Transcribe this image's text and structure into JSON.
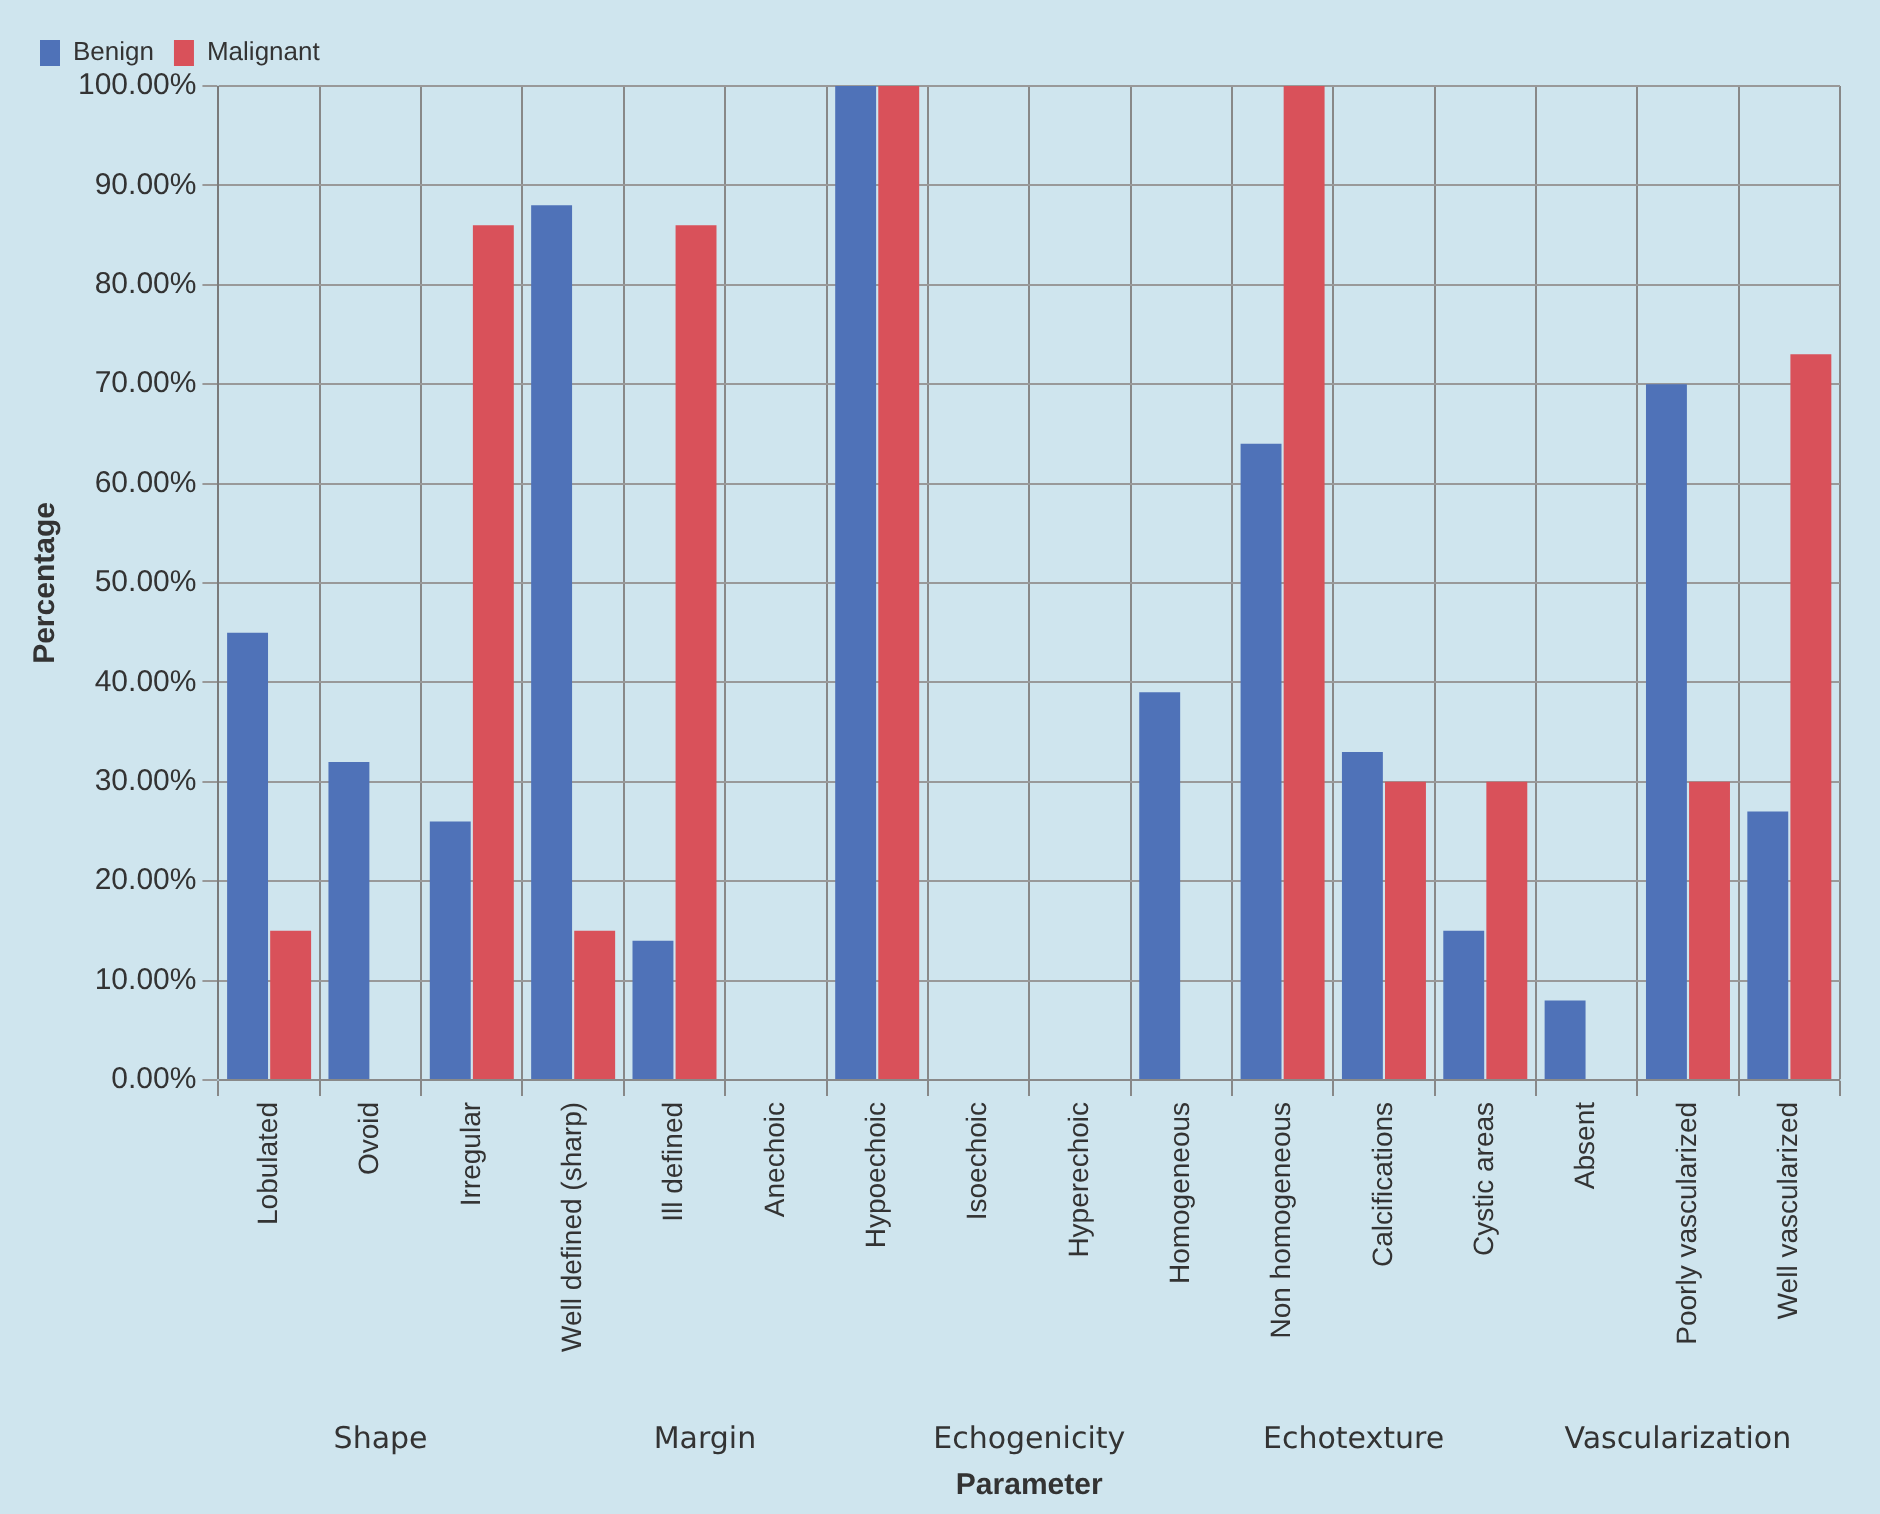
{
  "chart_data": {
    "type": "bar",
    "xlabel": "Parameter",
    "ylabel": "Percentage",
    "categories": [
      "Lobulated",
      "Ovoid",
      "Irregular",
      "Well defined (sharp)",
      "Ill defined",
      "Anechoic",
      "Hypoechoic",
      "Isoechoic",
      "Hyperechoic",
      "Homogeneous",
      "Non homogeneous",
      "Calcifications",
      "Cystic areas",
      "Absent",
      "Poorly vascularized",
      "Well vascularized"
    ],
    "series": [
      {
        "name": "Benign",
        "color": "#4f72b8",
        "values": [
          45,
          32,
          26,
          88,
          14,
          0,
          100,
          0,
          0,
          39,
          64,
          33,
          15,
          8,
          70,
          27
        ]
      },
      {
        "name": "Malignant",
        "color": "#d9515a",
        "values": [
          15,
          0,
          86,
          15,
          86,
          0,
          100,
          0,
          0,
          0,
          100,
          30,
          30,
          0,
          30,
          73
        ]
      }
    ],
    "ylim": [
      0,
      100
    ],
    "yticks": [
      {
        "value": 0,
        "label": "0.00%"
      },
      {
        "value": 10,
        "label": "10.00%"
      },
      {
        "value": 20,
        "label": "20.00%"
      },
      {
        "value": 30,
        "label": "30.00%"
      },
      {
        "value": 40,
        "label": "40.00%"
      },
      {
        "value": 50,
        "label": "50.00%"
      },
      {
        "value": 60,
        "label": "60.00%"
      },
      {
        "value": 70,
        "label": "70.00%"
      },
      {
        "value": 80,
        "label": "80.00%"
      },
      {
        "value": 90,
        "label": "90.00%"
      },
      {
        "value": 100,
        "label": "100.00%"
      }
    ],
    "annotations": [
      "Shape",
      "Margin",
      "Echogenicity",
      "Echotexture",
      "Vascularization"
    ],
    "grid": true,
    "legend": "top left"
  }
}
